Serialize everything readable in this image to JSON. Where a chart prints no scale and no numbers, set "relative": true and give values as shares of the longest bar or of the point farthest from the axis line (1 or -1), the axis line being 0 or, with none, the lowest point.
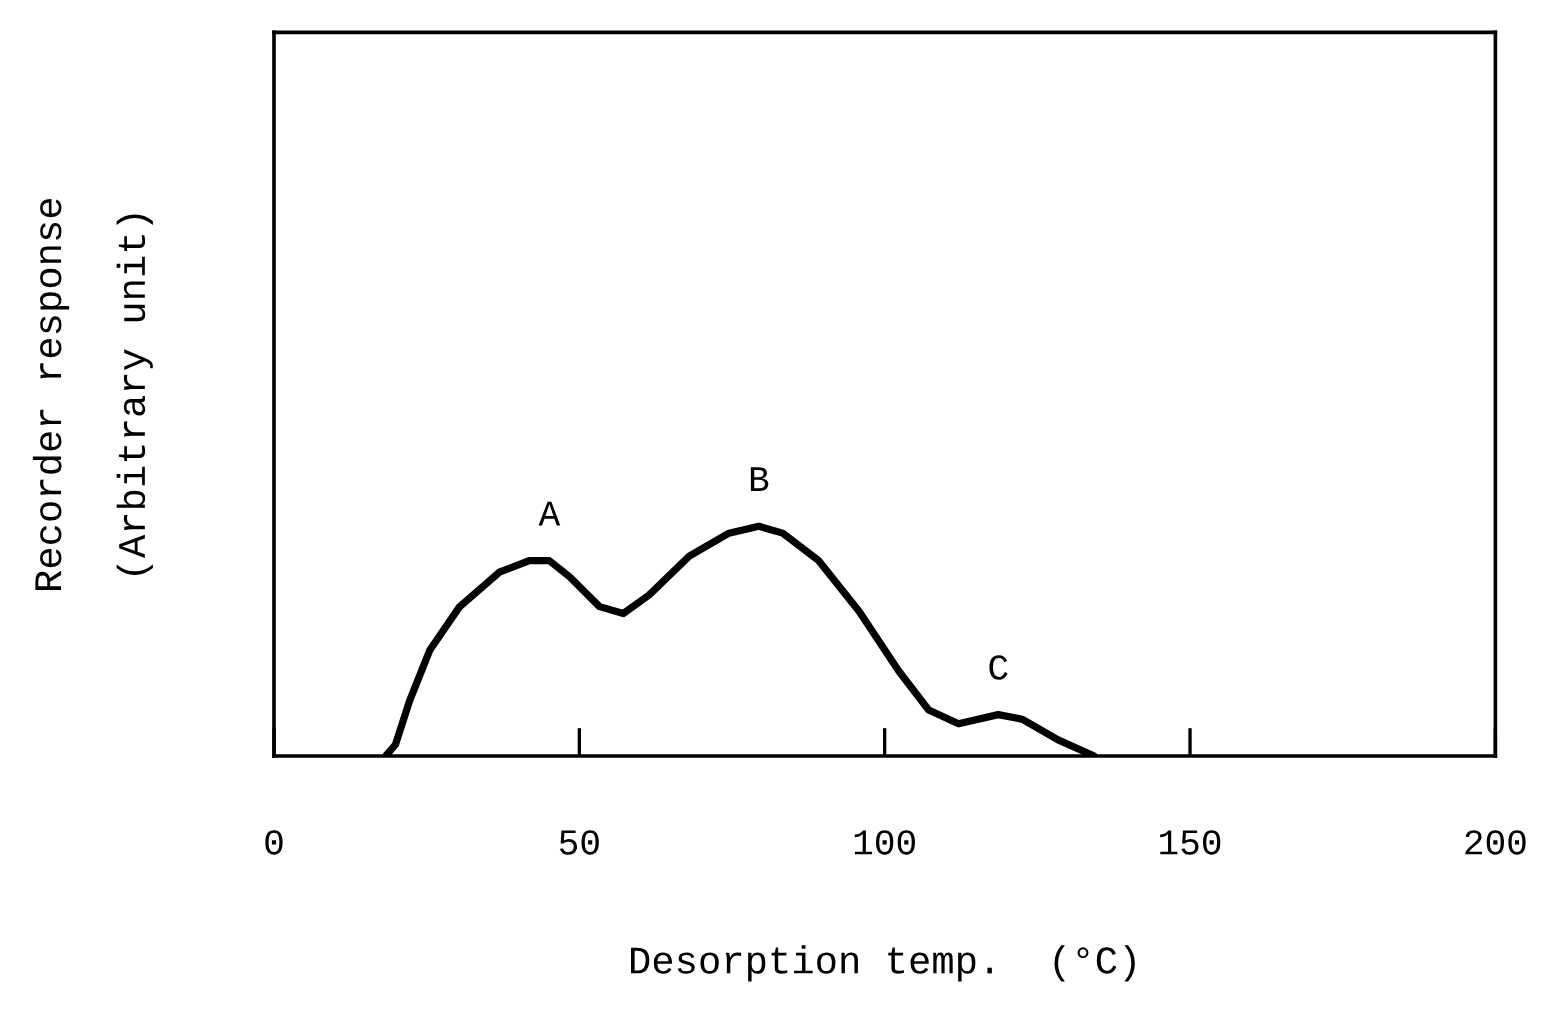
{
  "chart_data": {
    "type": "line",
    "relative": true,
    "xlabel": "Desorption temp.  (°C)",
    "ylabel": "Recorder response\n\n(Arbitrary unit)",
    "grid": false,
    "legend": false,
    "marker": "none",
    "line_style": "solid",
    "xlim": [
      0,
      200
    ],
    "xticks": [
      0,
      50,
      100,
      150,
      200
    ],
    "series": [
      {
        "color": "#000000",
        "x": [
          18.3,
          19.9,
          22.2,
          25.5,
          30.4,
          36.9,
          41.8,
          45.1,
          48.4,
          53.3,
          57.2,
          61.4,
          68.0,
          74.5,
          79.4,
          83.3,
          89.2,
          95.8,
          102.3,
          107.2,
          112.1,
          118.6,
          122.5,
          128.4,
          134.3
        ],
        "values": [
          0,
          0.05,
          0.24,
          0.46,
          0.65,
          0.8,
          0.85,
          0.85,
          0.78,
          0.65,
          0.62,
          0.7,
          0.87,
          0.97,
          1.0,
          0.97,
          0.85,
          0.63,
          0.37,
          0.2,
          0.14,
          0.18,
          0.16,
          0.07,
          0
        ]
      }
    ],
    "annotations": [
      {
        "text": "A",
        "x": 45.1,
        "y": 0.85
      },
      {
        "text": "B",
        "x": 79.4,
        "y": 1.0
      },
      {
        "text": "C",
        "x": 118.6,
        "y": 0.18
      }
    ]
  }
}
